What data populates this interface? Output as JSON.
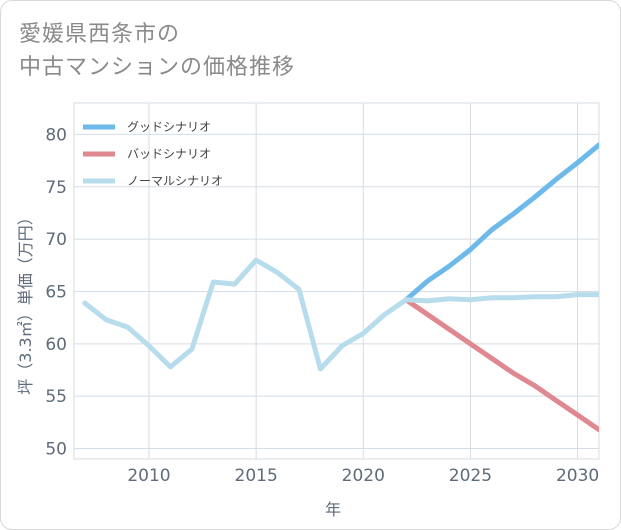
{
  "title_line1": "愛媛県西条市の",
  "title_line2": "中古マンションの価格推移",
  "chart_data": {
    "type": "line",
    "title": "愛媛県西条市の中古マンションの価格推移",
    "xlabel": "年",
    "ylabel": "坪（3.3㎡）単価（万円）",
    "xlim": [
      2006.5,
      2031
    ],
    "ylim": [
      49,
      83
    ],
    "xticks": [
      2010,
      2015,
      2020,
      2025,
      2030
    ],
    "yticks": [
      50,
      55,
      60,
      65,
      70,
      75,
      80
    ],
    "grid": true,
    "legend_position": "top-left",
    "series": [
      {
        "name": "グッドシナリオ",
        "color": "#6cb9ea",
        "x": [
          2022,
          2023,
          2024,
          2025,
          2026,
          2027,
          2028,
          2029,
          2030,
          2031
        ],
        "y": [
          64.2,
          66.0,
          67.4,
          69.0,
          70.9,
          72.4,
          74.0,
          75.7,
          77.3,
          79.0
        ]
      },
      {
        "name": "バッドシナリオ",
        "color": "#e0888f",
        "x": [
          2022,
          2023,
          2024,
          2025,
          2026,
          2027,
          2028,
          2029,
          2030,
          2031
        ],
        "y": [
          64.2,
          62.8,
          61.4,
          60.0,
          58.6,
          57.2,
          56.0,
          54.6,
          53.2,
          51.8
        ]
      },
      {
        "name": "ノーマルシナリオ",
        "color": "#b7dcec",
        "x": [
          2007,
          2008,
          2009,
          2010,
          2011,
          2012,
          2013,
          2014,
          2015,
          2016,
          2017,
          2018,
          2019,
          2020,
          2021,
          2022,
          2023,
          2024,
          2025,
          2026,
          2027,
          2028,
          2029,
          2030,
          2031
        ],
        "y": [
          63.9,
          62.3,
          61.6,
          59.8,
          57.8,
          59.5,
          65.9,
          65.7,
          68.0,
          66.8,
          65.2,
          57.6,
          59.8,
          61.0,
          62.8,
          64.2,
          64.1,
          64.3,
          64.2,
          64.4,
          64.4,
          64.5,
          64.5,
          64.7,
          64.7
        ]
      }
    ]
  }
}
